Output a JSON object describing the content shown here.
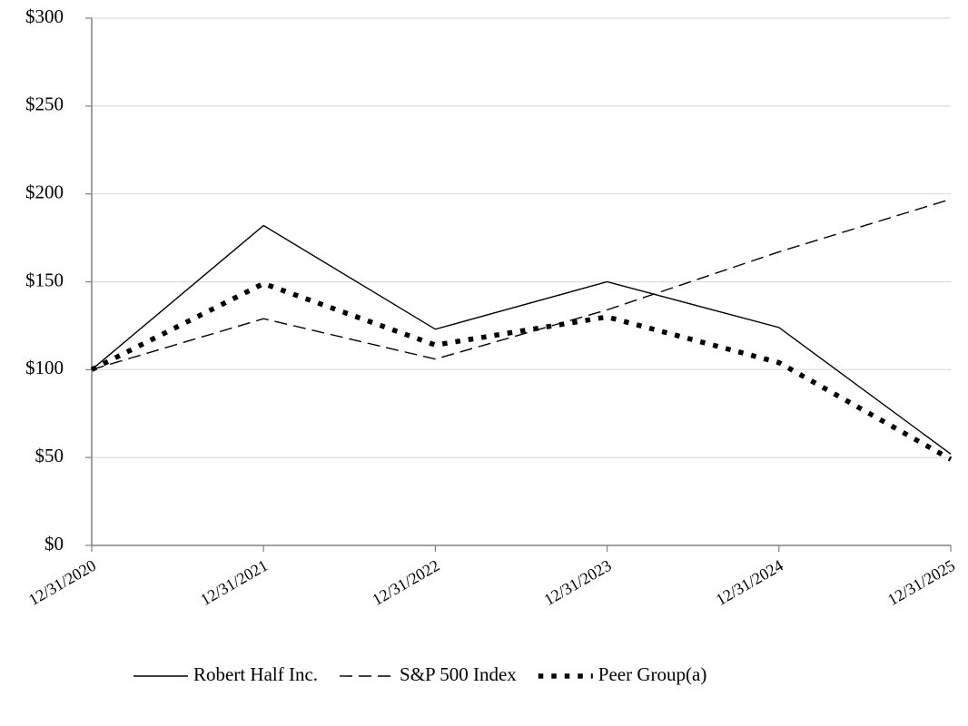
{
  "chart_data": {
    "type": "line",
    "categories": [
      "12/31/2020",
      "12/31/2021",
      "12/31/2022",
      "12/31/2023",
      "12/31/2024",
      "12/31/2025"
    ],
    "series": [
      {
        "name": "Robert Half Inc.",
        "color": "#000000",
        "dash": "solid",
        "values": [
          100,
          182,
          123,
          150,
          124,
          52
        ]
      },
      {
        "name": "S&P 500 Index",
        "color": "#000000",
        "dash": "dashed",
        "values": [
          100,
          129,
          106,
          134,
          167,
          197
        ]
      },
      {
        "name": "Peer Group(a)",
        "color": "#000000",
        "dash": "dotted",
        "values": [
          100,
          149,
          114,
          130,
          104,
          49
        ]
      }
    ],
    "ylim": [
      0,
      300
    ],
    "yticks": [
      {
        "value": 0,
        "label": "$0"
      },
      {
        "value": 50,
        "label": "$50"
      },
      {
        "value": 100,
        "label": "$100"
      },
      {
        "value": 150,
        "label": "$150"
      },
      {
        "value": 200,
        "label": "$200"
      },
      {
        "value": 250,
        "label": "$250"
      },
      {
        "value": 300,
        "label": "$300"
      }
    ],
    "grid": true,
    "legend": "bottom"
  }
}
